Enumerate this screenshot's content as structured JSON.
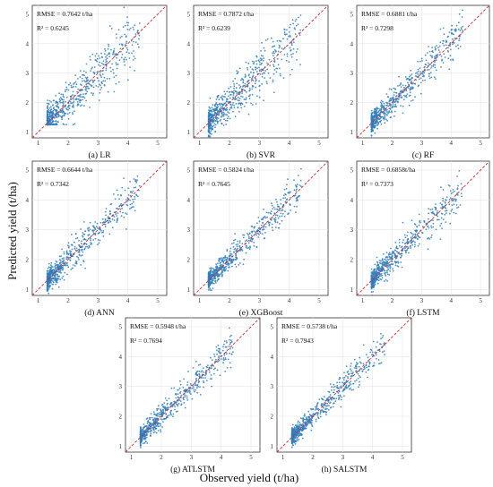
{
  "figure": {
    "ylabel": "Predicted yield (t/ha)",
    "xlabel": "Observed yield (t/ha)"
  },
  "chart_data": [
    {
      "type": "scatter",
      "caption": "(a)  LR",
      "rmse_label": "RMSE = 0.7642 t/ha",
      "r2_label": "R² = 0.6245",
      "xlim": [
        0.8,
        5.3
      ],
      "ylim": [
        0.8,
        5.3
      ],
      "xticks": [
        1,
        2,
        3,
        4,
        5
      ],
      "yticks": [
        1,
        2,
        3,
        4,
        5
      ],
      "point_color": "#2f7fbf",
      "ref_line_color": "#d62728",
      "spread": 0.22
    },
    {
      "type": "scatter",
      "caption": "(b) SVR",
      "rmse_label": "RMSE = 0.7872 t/ha",
      "r2_label": "R² = 0.6239",
      "xlim": [
        0.8,
        5.3
      ],
      "ylim": [
        0.8,
        5.3
      ],
      "xticks": [
        1,
        2,
        3,
        4,
        5
      ],
      "yticks": [
        1,
        2,
        3,
        4,
        5
      ],
      "point_color": "#2f7fbf",
      "ref_line_color": "#d62728",
      "spread": 0.22
    },
    {
      "type": "scatter",
      "caption": "(c) RF",
      "rmse_label": "RMSE = 0.6881 t/ha",
      "r2_label": "R² = 0.7298",
      "xlim": [
        0.8,
        5.3
      ],
      "ylim": [
        0.8,
        5.3
      ],
      "xticks": [
        1,
        2,
        3,
        4,
        5
      ],
      "yticks": [
        1,
        2,
        3,
        4,
        5
      ],
      "point_color": "#2f7fbf",
      "ref_line_color": "#d62728",
      "spread": 0.16
    },
    {
      "type": "scatter",
      "caption": "(d) ANN",
      "rmse_label": "RMSE = 0.6644 t/ha",
      "r2_label": "R² = 0.7342",
      "xlim": [
        0.8,
        5.3
      ],
      "ylim": [
        0.8,
        5.3
      ],
      "xticks": [
        1,
        2,
        3,
        4,
        5
      ],
      "yticks": [
        1,
        2,
        3,
        4,
        5
      ],
      "point_color": "#2f7fbf",
      "ref_line_color": "#d62728",
      "spread": 0.16
    },
    {
      "type": "scatter",
      "caption": "(e) XGBoost",
      "rmse_label": "RMSE = 0.5824 t/ha",
      "r2_label": "R² = 0.7645",
      "xlim": [
        0.8,
        5.3
      ],
      "ylim": [
        0.8,
        5.3
      ],
      "xticks": [
        1,
        2,
        3,
        4,
        5
      ],
      "yticks": [
        1,
        2,
        3,
        4,
        5
      ],
      "point_color": "#2f7fbf",
      "ref_line_color": "#d62728",
      "spread": 0.13
    },
    {
      "type": "scatter",
      "caption": "(f) LSTM",
      "rmse_label": "RMSE = 0.6858t/ha",
      "r2_label": "R² = 0.7373",
      "xlim": [
        0.8,
        5.3
      ],
      "ylim": [
        0.8,
        5.3
      ],
      "xticks": [
        1,
        2,
        3,
        4,
        5
      ],
      "yticks": [
        1,
        2,
        3,
        4,
        5
      ],
      "point_color": "#2f7fbf",
      "ref_line_color": "#d62728",
      "spread": 0.15
    },
    {
      "type": "scatter",
      "caption": "(g) ATLSTM",
      "rmse_label": "RMSE = 0.5948 t/ha",
      "r2_label": "R² = 0.7694",
      "xlim": [
        0.8,
        5.3
      ],
      "ylim": [
        0.8,
        5.3
      ],
      "xticks": [
        1,
        2,
        3,
        4,
        5
      ],
      "yticks": [
        1,
        2,
        3,
        4,
        5
      ],
      "point_color": "#2f7fbf",
      "ref_line_color": "#d62728",
      "spread": 0.13
    },
    {
      "type": "scatter",
      "caption": "(h) SALSTM",
      "rmse_label": "RMSE = 0.5738 t/ha",
      "r2_label": "R² = 0.7943",
      "xlim": [
        0.8,
        5.3
      ],
      "ylim": [
        0.8,
        5.3
      ],
      "xticks": [
        1,
        2,
        3,
        4,
        5
      ],
      "yticks": [
        1,
        2,
        3,
        4,
        5
      ],
      "point_color": "#2f7fbf",
      "ref_line_color": "#d62728",
      "spread": 0.12
    }
  ]
}
